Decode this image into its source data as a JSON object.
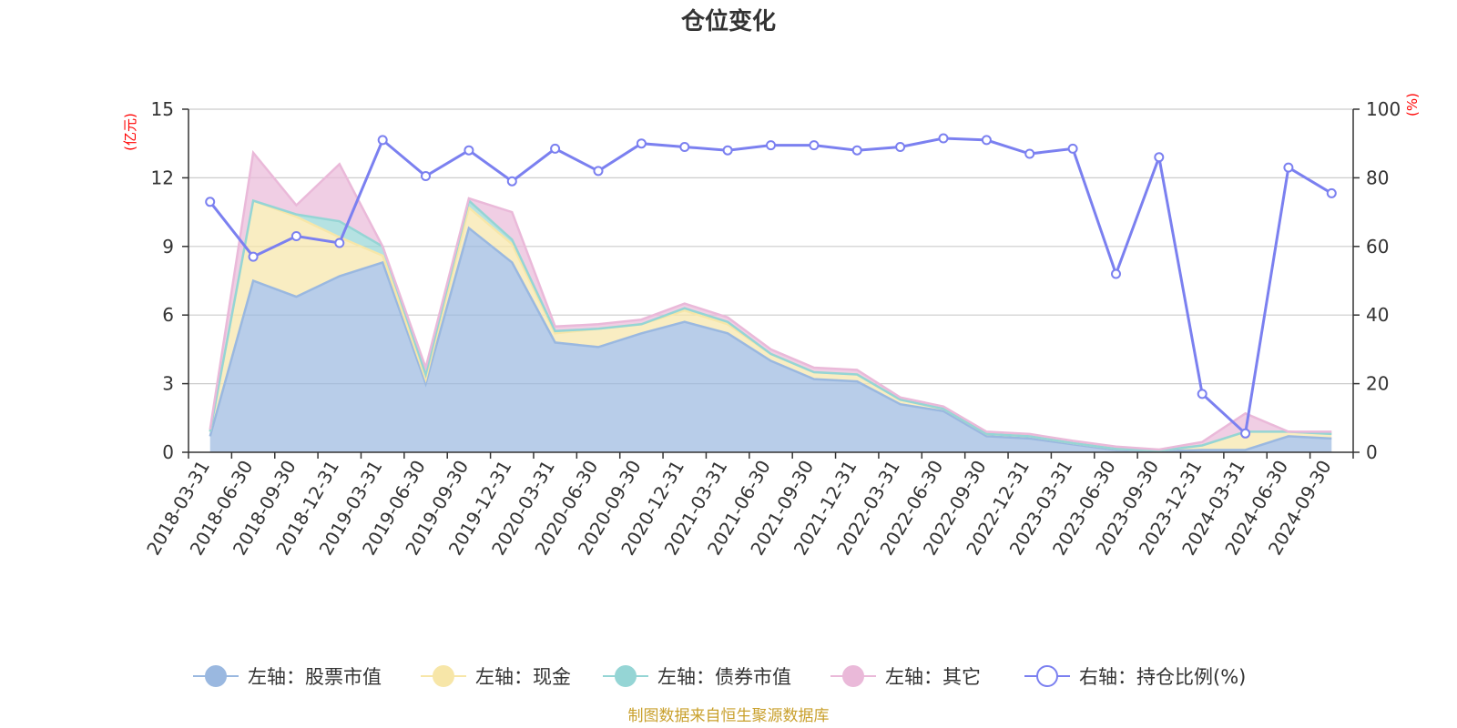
{
  "chart_data": {
    "type": "area",
    "title": "仓位变化",
    "left_axis": {
      "unit": "(亿元)",
      "min": 0,
      "max": 15,
      "ticks": [
        0,
        3,
        6,
        9,
        12,
        15
      ]
    },
    "right_axis": {
      "unit": "(%)",
      "min": 0,
      "max": 100,
      "ticks": [
        0,
        20,
        40,
        60,
        80,
        100
      ]
    },
    "grid": true,
    "legend_position": "bottom",
    "categories": [
      "2018-03-31",
      "2018-06-30",
      "2018-09-30",
      "2018-12-31",
      "2019-03-31",
      "2019-06-30",
      "2019-09-30",
      "2019-12-31",
      "2020-03-31",
      "2020-06-30",
      "2020-09-30",
      "2020-12-31",
      "2021-03-31",
      "2021-06-30",
      "2021-09-30",
      "2021-12-31",
      "2022-03-31",
      "2022-06-30",
      "2022-09-30",
      "2022-12-31",
      "2023-03-31",
      "2023-06-30",
      "2023-09-30",
      "2023-12-31",
      "2024-03-31",
      "2024-06-30",
      "2024-09-30"
    ],
    "stacked_series": [
      {
        "name": "左轴：股票市值",
        "axis": "left",
        "color": "#9ab8e0",
        "values": [
          0.7,
          7.5,
          6.8,
          7.7,
          8.3,
          3.0,
          9.8,
          8.3,
          4.8,
          4.6,
          5.2,
          5.7,
          5.2,
          4.0,
          3.2,
          3.1,
          2.1,
          1.8,
          0.7,
          0.6,
          0.35,
          0.1,
          0.05,
          0.1,
          0.1,
          0.7,
          0.6
        ]
      },
      {
        "name": "左轴：现金",
        "axis": "left",
        "color": "#f7e6a8",
        "values": [
          0.2,
          3.5,
          3.5,
          1.7,
          0.3,
          0.2,
          0.9,
          0.8,
          0.4,
          0.8,
          0.4,
          0.5,
          0.4,
          0.3,
          0.3,
          0.3,
          0.2,
          0.1,
          0.1,
          0.1,
          0.05,
          0.05,
          0.02,
          0.2,
          0.8,
          0.2,
          0.2
        ]
      },
      {
        "name": "左轴：债券市值",
        "axis": "left",
        "color": "#95d5d5",
        "values": [
          0.0,
          0.0,
          0.1,
          0.7,
          0.4,
          0.2,
          0.3,
          0.2,
          0.1,
          0.0,
          0.0,
          0.1,
          0.1,
          0.0,
          0.0,
          0.0,
          0.0,
          0.0,
          0.0,
          0.0,
          0.0,
          0.0,
          0.0,
          0.0,
          0.0,
          0.0,
          0.0
        ]
      },
      {
        "name": "左轴：其它",
        "axis": "left",
        "color": "#eab9d9",
        "values": [
          0.1,
          2.1,
          0.4,
          2.5,
          0.0,
          0.3,
          0.1,
          1.2,
          0.2,
          0.2,
          0.2,
          0.2,
          0.2,
          0.2,
          0.2,
          0.2,
          0.1,
          0.1,
          0.1,
          0.1,
          0.1,
          0.1,
          0.05,
          0.15,
          0.8,
          0.0,
          0.1
        ]
      }
    ],
    "line_series": {
      "name": "右轴：持仓比例(%)",
      "axis": "right",
      "color": "#7b80f0",
      "values": [
        73,
        57,
        63,
        61,
        91,
        80.5,
        88,
        79,
        88.5,
        82,
        90,
        89,
        88,
        89.5,
        89.5,
        88,
        89,
        91.5,
        91,
        87,
        88.5,
        52,
        86,
        17,
        5.5,
        83,
        75.5
      ]
    }
  },
  "source_text": "制图数据来自恒生聚源数据库"
}
